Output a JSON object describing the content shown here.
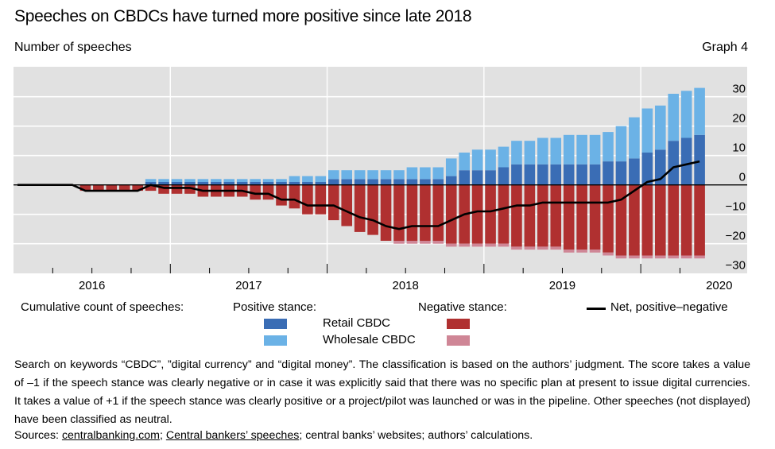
{
  "header": {
    "title": "Speeches on CBDCs have turned more positive since late 2018",
    "subtitle": "Number of speeches",
    "graph_number": "Graph 4"
  },
  "colors": {
    "panel": "#e1e1e1",
    "gridline": "#ffffff",
    "retail_positive": "#3a6db5",
    "wholesale_positive": "#6bb2e6",
    "retail_negative": "#b03030",
    "wholesale_negative": "#cf8696",
    "net_line": "#000000"
  },
  "legend": {
    "heading": "Cumulative count of speeches:",
    "positive_heading": "Positive stance:",
    "negative_heading": "Negative stance:",
    "retail_label": "Retail CBDC",
    "wholesale_label": "Wholesale CBDC",
    "net_label": "Net, positive–negative"
  },
  "notes": "Search on keywords “CBDC”, ”digital currency” and “digital money”. The classification is based on the authors’ judgment. The score takes a value of –1 if the speech stance was clearly negative or in case it was explicitly said that there was no specific plan at present to issue digital currencies. It takes a value of +1 if the speech stance was clearly positive or a project/pilot was launched or was in the pipeline. Other speeches (not displayed) have been classified as neutral.",
  "sources": {
    "prefix": "Sources: ",
    "link1": "centralbanking.com",
    "sep1": "; ",
    "link2": "Central bankers’ speeches",
    "rest": "; central banks’ websites; authors’ calculations."
  },
  "chart_data": {
    "type": "bar",
    "stacked": true,
    "title": "Speeches on CBDCs have turned more positive since late 2018",
    "ylabel": "Number of speeches",
    "xlabel": "",
    "ylim": [
      -30,
      40
    ],
    "yticks": [
      30,
      20,
      10,
      0,
      -10,
      -20,
      -30
    ],
    "ytick_labels": [
      "30",
      "20",
      "10",
      "0",
      "−10",
      "−20",
      "−30"
    ],
    "xtick_labels": [
      "2016",
      "2017",
      "2018",
      "2019",
      "2020"
    ],
    "grid": true,
    "y_axis_side": "right",
    "legend_position": "bottom",
    "categories": [
      "2016-01",
      "2016-02",
      "2016-03",
      "2016-04",
      "2016-05",
      "2016-06",
      "2016-07",
      "2016-08",
      "2016-09",
      "2016-10",
      "2016-11",
      "2016-12",
      "2017-01",
      "2017-02",
      "2017-03",
      "2017-04",
      "2017-05",
      "2017-06",
      "2017-07",
      "2017-08",
      "2017-09",
      "2017-10",
      "2017-11",
      "2017-12",
      "2018-01",
      "2018-02",
      "2018-03",
      "2018-04",
      "2018-05",
      "2018-06",
      "2018-07",
      "2018-08",
      "2018-09",
      "2018-10",
      "2018-11",
      "2018-12",
      "2019-01",
      "2019-02",
      "2019-03",
      "2019-04",
      "2019-05",
      "2019-06",
      "2019-07",
      "2019-08",
      "2019-09",
      "2019-10",
      "2019-11",
      "2019-12",
      "2020-01",
      "2020-02",
      "2020-03",
      "2020-04",
      "2020-05"
    ],
    "series": [
      {
        "name": "Positive stance: Retail CBDC",
        "key": "retail_positive",
        "values": [
          0,
          0,
          0,
          0,
          0,
          0,
          0,
          0,
          0,
          0,
          1,
          1,
          1,
          1,
          1,
          1,
          1,
          1,
          1,
          1,
          1,
          1,
          1,
          1,
          2,
          2,
          2,
          2,
          2,
          2,
          2,
          2,
          2,
          3,
          5,
          5,
          5,
          6,
          7,
          7,
          7,
          7,
          7,
          7,
          7,
          8,
          8,
          9,
          11,
          12,
          15,
          16,
          17
        ]
      },
      {
        "name": "Positive stance: Wholesale CBDC",
        "key": "wholesale_positive",
        "values": [
          0,
          0,
          0,
          0,
          0,
          0,
          0,
          0,
          0,
          0,
          1,
          1,
          1,
          1,
          1,
          1,
          1,
          1,
          1,
          1,
          1,
          2,
          2,
          2,
          3,
          3,
          3,
          3,
          3,
          3,
          4,
          4,
          4,
          6,
          6,
          7,
          7,
          7,
          8,
          8,
          9,
          9,
          10,
          10,
          10,
          10,
          12,
          14,
          15,
          15,
          16,
          16,
          16
        ]
      },
      {
        "name": "Negative stance: Retail CBDC",
        "key": "retail_negative",
        "values": [
          0,
          0,
          0,
          0,
          0,
          -2,
          -2,
          -2,
          -2,
          -2,
          -2,
          -3,
          -3,
          -3,
          -4,
          -4,
          -4,
          -4,
          -5,
          -5,
          -7,
          -8,
          -10,
          -10,
          -12,
          -14,
          -16,
          -17,
          -19,
          -19,
          -19,
          -19,
          -19,
          -20,
          -20,
          -20,
          -20,
          -20,
          -21,
          -21,
          -21,
          -21,
          -22,
          -22,
          -22,
          -23,
          -24,
          -24,
          -24,
          -24,
          -24,
          -24,
          -24
        ]
      },
      {
        "name": "Negative stance: Wholesale CBDC",
        "key": "wholesale_negative",
        "values": [
          0,
          0,
          0,
          0,
          0,
          0,
          0,
          0,
          0,
          0,
          0,
          0,
          0,
          0,
          0,
          0,
          0,
          0,
          0,
          0,
          0,
          0,
          0,
          0,
          0,
          0,
          0,
          0,
          0,
          -1,
          -1,
          -1,
          -1,
          -1,
          -1,
          -1,
          -1,
          -1,
          -1,
          -1,
          -1,
          -1,
          -1,
          -1,
          -1,
          -1,
          -1,
          -1,
          -1,
          -1,
          -1,
          -1,
          -1
        ]
      },
      {
        "name": "Net, positive–negative",
        "key": "net",
        "type": "line",
        "values": [
          0,
          0,
          0,
          0,
          0,
          -2,
          -2,
          -2,
          -2,
          -2,
          0,
          -1,
          -1,
          -1,
          -2,
          -2,
          -2,
          -2,
          -3,
          -3,
          -5,
          -5,
          -7,
          -7,
          -7,
          -9,
          -11,
          -12,
          -14,
          -15,
          -14,
          -14,
          -14,
          -12,
          -10,
          -9,
          -9,
          -8,
          -7,
          -7,
          -6,
          -6,
          -6,
          -6,
          -6,
          -6,
          -5,
          -2,
          1,
          2,
          6,
          7,
          8
        ]
      }
    ]
  }
}
